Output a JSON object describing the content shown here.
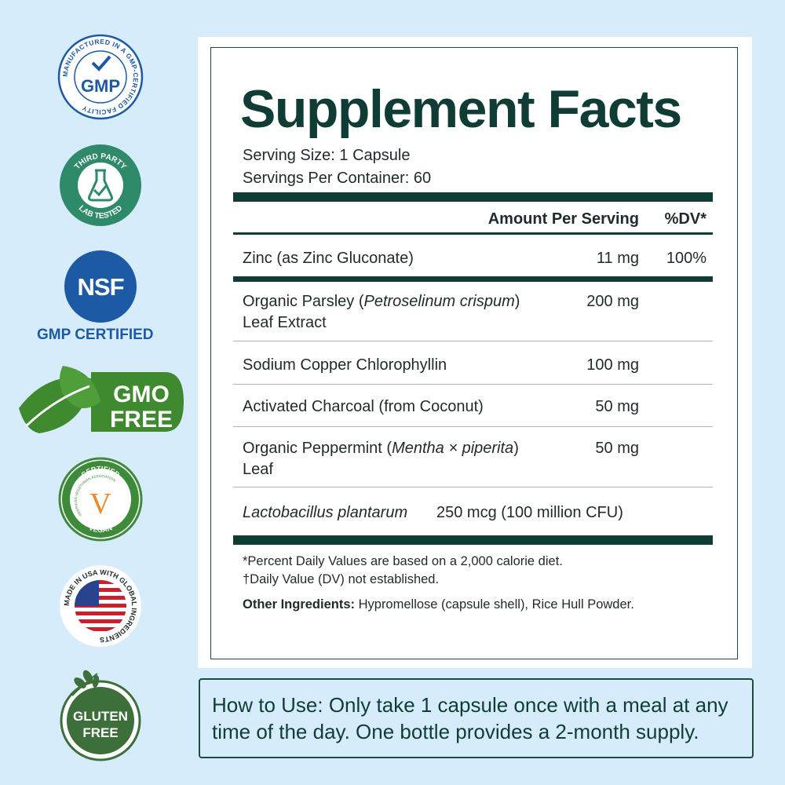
{
  "badges": {
    "gmp": {
      "ring_text": "MANUFACTURED IN A GMP-CERTIFIED FACILITY",
      "center": "GMP"
    },
    "lab": {
      "top": "THIRD PARTY",
      "bottom": "LAB TESTED"
    },
    "nsf": {
      "logo": "NSF",
      "caption": "GMP CERTIFIED"
    },
    "gmo": {
      "line1": "GMO",
      "line2": "FREE"
    },
    "vegan": {
      "top": "CERTIFIED",
      "ring": "AMERICAN VEGETARIAN ASSOCIATION",
      "letter": "V",
      "bottom": "VEGAN"
    },
    "usa": {
      "ring_text": "MADE IN USA WITH GLOBAL INGREDIENTS"
    },
    "gluten": {
      "line1": "GLUTEN",
      "line2": "FREE"
    }
  },
  "facts": {
    "title": "Supplement Facts",
    "serving_size": "Serving Size: 1 Capsule",
    "servings_per_container": "Servings Per Container: 60",
    "header_amount": "Amount Per Serving",
    "header_dv": "%DV*",
    "rows": [
      {
        "name": "Zinc (as Zinc Gluconate)",
        "amount": "11 mg",
        "dv": "100%"
      },
      {
        "name_pre": "Organic Parsley (",
        "name_italic": "Petroselinum crispum",
        "name_post": ")",
        "name_line2": "Leaf Extract",
        "amount": "200 mg"
      },
      {
        "name": "Sodium Copper Chlorophyllin",
        "amount": "100 mg"
      },
      {
        "name": "Activated Charcoal (from Coconut)",
        "amount": "50 mg"
      },
      {
        "name_pre": "Organic Peppermint (",
        "name_italic": "Mentha × piperita",
        "name_post": ")",
        "name_line2": "Leaf",
        "amount": "50 mg"
      },
      {
        "name_italic": "Lactobacillus plantarum",
        "amount": "250 mcg (100 million CFU)"
      }
    ],
    "footnote1": "*Percent Daily Values are based on a 2,000 calorie diet.",
    "footnote2": "†Daily Value (DV) not established.",
    "other_label": "Other Ingredients:",
    "other_value": " Hypromellose (capsule shell), Rice Hull Powder."
  },
  "how_to_use": "How to Use: Only take 1 capsule once with a meal at any time of the day. One bottle provides a 2-month supply.",
  "colors": {
    "background": "#d6ecfa",
    "dark_green": "#0f3d36",
    "nsf_blue": "#1d5aa6",
    "gmo_green": "#3f8a2e"
  }
}
